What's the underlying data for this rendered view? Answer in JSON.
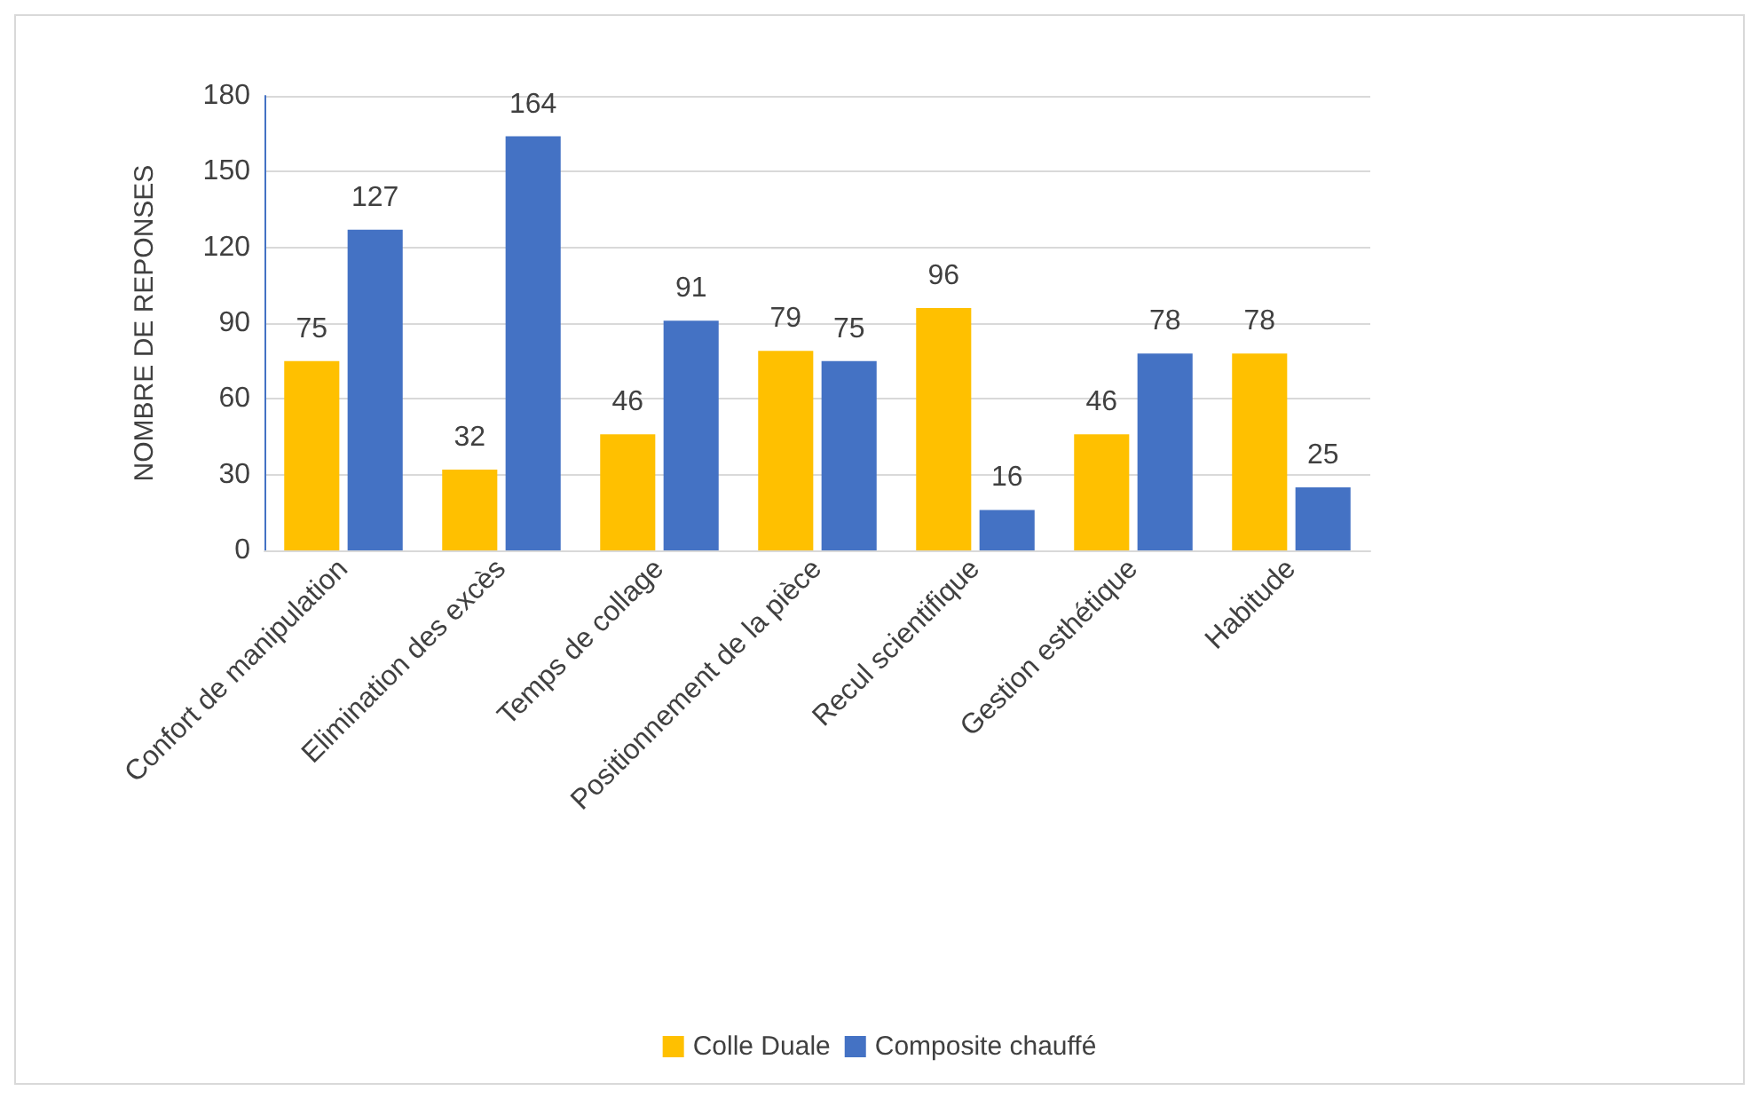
{
  "chart_data": {
    "type": "bar",
    "ylabel": "NOMBRE DE REPONSES",
    "categories": [
      "Confort de manipulation",
      "Elimination des excès",
      "Temps de collage",
      "Positionnement de la pièce",
      "Recul scientifique",
      "Gestion esthétique",
      "Habitude"
    ],
    "series": [
      {
        "name": "Colle Duale",
        "color": "#ffc000",
        "values": [
          75,
          32,
          46,
          79,
          96,
          46,
          78
        ]
      },
      {
        "name": "Composite chauffé",
        "color": "#4472c4",
        "values": [
          127,
          164,
          91,
          75,
          16,
          78,
          25
        ]
      }
    ],
    "ylim": [
      0,
      180
    ],
    "yticks": [
      0,
      30,
      60,
      90,
      120,
      150,
      180
    ],
    "grid": "y",
    "legend": "bottom",
    "data_labels": true
  }
}
